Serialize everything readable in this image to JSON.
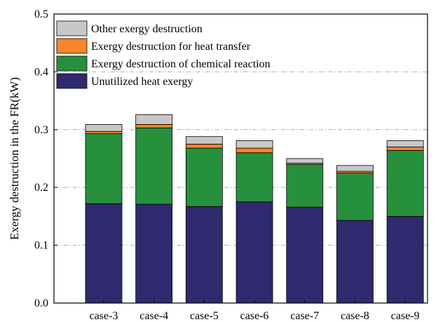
{
  "chart_data": {
    "type": "bar",
    "stacked": true,
    "title": "",
    "xlabel": "",
    "ylabel": "Exergy destruction in the FR(kW)",
    "ylim": [
      0,
      0.5
    ],
    "yticks": [
      "0.0",
      "0.1",
      "0.2",
      "0.3",
      "0.4",
      "0.5"
    ],
    "grid": "horizontal dash-dot",
    "legend_position": "top-left",
    "categories": [
      "case-3",
      "case-4",
      "case-5",
      "case-6",
      "case-7",
      "case-8",
      "case-9"
    ],
    "series": [
      {
        "name": "Unutilized heat exergy",
        "color": "#2f2a6e",
        "values": [
          0.172,
          0.171,
          0.167,
          0.175,
          0.166,
          0.143,
          0.15
        ]
      },
      {
        "name": "Exergy destruction of chemical reaction",
        "color": "#27903d",
        "values": [
          0.121,
          0.132,
          0.101,
          0.085,
          0.074,
          0.082,
          0.114
        ]
      },
      {
        "name": "Exergy destruction for heat transfer",
        "color": "#f5862a",
        "values": [
          0.004,
          0.006,
          0.007,
          0.008,
          0.002,
          0.003,
          0.006
        ]
      },
      {
        "name": "Other exergy destruction",
        "color": "#c8c8c8",
        "values": [
          0.012,
          0.017,
          0.013,
          0.013,
          0.008,
          0.01,
          0.011
        ]
      }
    ]
  }
}
